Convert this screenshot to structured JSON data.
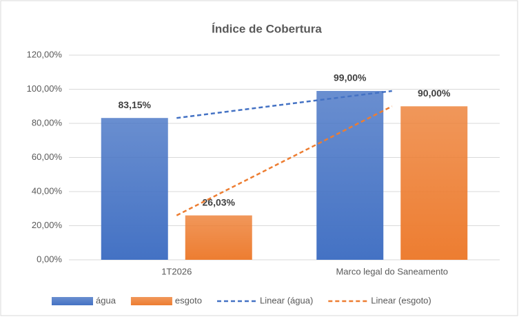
{
  "chart_data": {
    "type": "bar",
    "title": "Índice de Cobertura",
    "categories": [
      "1T2026",
      "Marco legal do Saneamento"
    ],
    "series": [
      {
        "name": "água",
        "color": "#4472c4",
        "values": [
          83.15,
          99
        ],
        "value_labels": [
          "83,15%",
          "99,00%"
        ],
        "trendline": {
          "name": "Linear (água)",
          "type": "linear",
          "dashed": true
        }
      },
      {
        "name": "esgoto",
        "color": "#ed7d31",
        "values": [
          26.03,
          90
        ],
        "value_labels": [
          "26,03%",
          "90,00%"
        ],
        "trendline": {
          "name": "Linear (esgoto)",
          "type": "linear",
          "dashed": true
        }
      }
    ],
    "ylim": [
      0,
      120
    ],
    "yticks": [
      {
        "value": 0,
        "label": "0,00%"
      },
      {
        "value": 20,
        "label": "20,00%"
      },
      {
        "value": 40,
        "label": "40,00%"
      },
      {
        "value": 60,
        "label": "60,00%"
      },
      {
        "value": 80,
        "label": "80,00%"
      },
      {
        "value": 100,
        "label": "100,00%"
      },
      {
        "value": 120,
        "label": "120,00%"
      }
    ],
    "grid": true,
    "legend": "bottom"
  }
}
